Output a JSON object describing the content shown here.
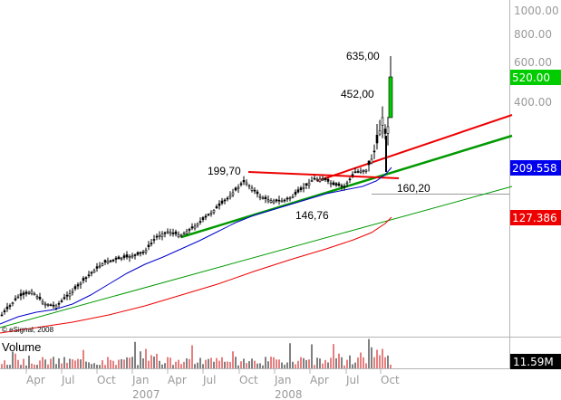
{
  "chart_data": {
    "type": "candlestick",
    "scale": "log",
    "title": "",
    "copyright": "© eSignal, 2008",
    "price_axis_ticks": [
      "1000.00",
      "800.00",
      "600.00",
      "400.00"
    ],
    "price_axis_values": [
      1000,
      800,
      600,
      400
    ],
    "time_axis": {
      "months": [
        "Apr",
        "Jul",
        "Oct",
        "Jan",
        "Apr",
        "Jul",
        "Oct",
        "Jan",
        "Apr",
        "Jul",
        "Oct"
      ],
      "years": [
        "2007",
        "2008"
      ]
    },
    "badges": [
      {
        "label": "520.00",
        "value": 520,
        "color": "#00cc00",
        "text_color": "#ffffff"
      },
      {
        "label": "209.558",
        "value": 209.558,
        "color": "#0000ee",
        "text_color": "#ffffff"
      },
      {
        "label": "127.386",
        "value": 127.386,
        "color": "#ee0000",
        "text_color": "#ffffff"
      }
    ],
    "annotations": [
      {
        "text": "635,00",
        "value": 635
      },
      {
        "text": "452,00",
        "value": 452
      },
      {
        "text": "199,70",
        "value": 199.7
      },
      {
        "text": "160,20",
        "value": 160.2
      },
      {
        "text": "146,76",
        "value": 146.76
      }
    ],
    "series": [
      {
        "type": "candles",
        "color": "#000000"
      },
      {
        "type": "moving-average",
        "color": "#0000cc"
      },
      {
        "type": "moving-average",
        "color": "#cc0000"
      },
      {
        "type": "trendline",
        "color": "#cc0000"
      },
      {
        "type": "trendline",
        "color": "#009900"
      },
      {
        "type": "trendline",
        "color": "#009900"
      }
    ],
    "volume": {
      "title": "Volume",
      "last_label": "11.59M",
      "badge_color": "#000000"
    },
    "grid": false,
    "legend": "none"
  }
}
